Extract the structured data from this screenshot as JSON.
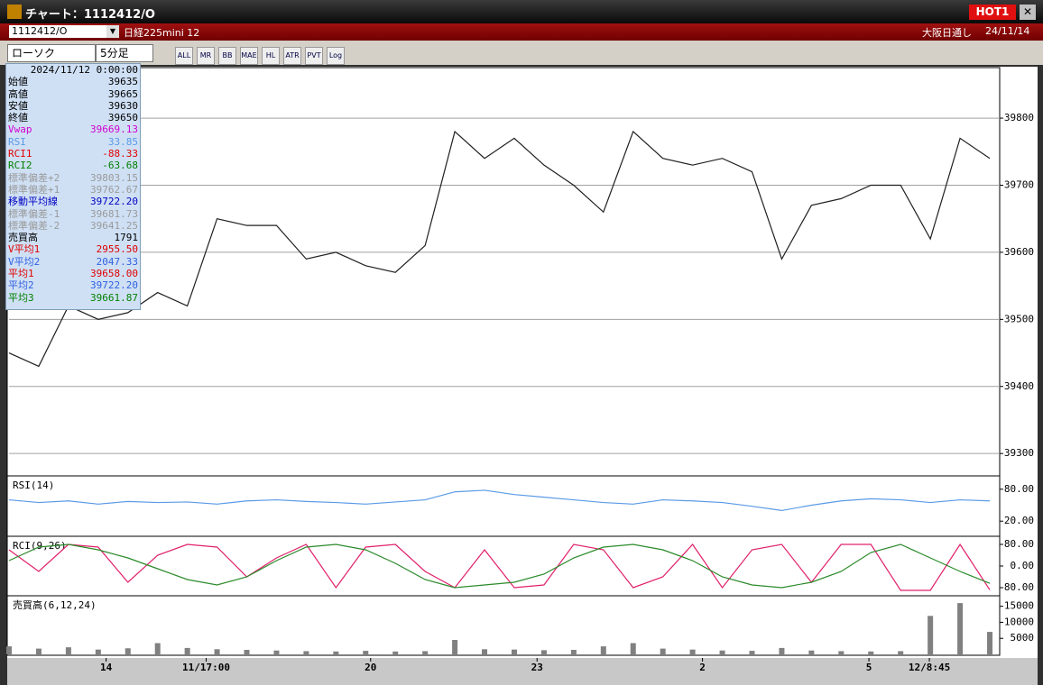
{
  "window": {
    "title": "チャート：1112412/O",
    "hot": "HOT1"
  },
  "toolbar": {
    "symbol": "1112412/O",
    "name": "日経225mini 12",
    "exchange": "大阪日通し",
    "date": "24/11/14",
    "chart_type": "ローソク",
    "interval": "5分足",
    "buttons": [
      "ALL",
      "MR",
      "BB",
      "MAE",
      "HL",
      "ATR",
      "PVT",
      "Log"
    ]
  },
  "info": {
    "datetime": "2024/11/12 0:00:00",
    "rows": [
      {
        "label": "始値",
        "value": "39635",
        "color": "#000000"
      },
      {
        "label": "高値",
        "value": "39665",
        "color": "#000000"
      },
      {
        "label": "安値",
        "value": "39630",
        "color": "#000000"
      },
      {
        "label": "終値",
        "value": "39650",
        "color": "#000000"
      },
      {
        "label": "Vwap",
        "value": "39669.13",
        "color": "#d000d0"
      },
      {
        "label": "RSI",
        "value": "33.85",
        "color": "#5a9ae6"
      },
      {
        "label": "RCI1",
        "value": "-88.33",
        "color": "#e00000"
      },
      {
        "label": "RCI2",
        "value": "-63.68",
        "color": "#008000"
      },
      {
        "label": "標準偏差+2",
        "value": "39803.15",
        "color": "#9a9a9a"
      },
      {
        "label": "標準偏差+1",
        "value": "39762.67",
        "color": "#9a9a9a"
      },
      {
        "label": "移動平均線",
        "value": "39722.20",
        "color": "#0000c0"
      },
      {
        "label": "標準偏差-1",
        "value": "39681.73",
        "color": "#9a9a9a"
      },
      {
        "label": "標準偏差-2",
        "value": "39641.25",
        "color": "#9a9a9a"
      },
      {
        "label": "売買高",
        "value": "1791",
        "color": "#000000"
      },
      {
        "label": "V平均1",
        "value": "2955.50",
        "color": "#e00000"
      },
      {
        "label": "V平均2",
        "value": "2047.33",
        "color": "#3060e0"
      },
      {
        "label": "平均1",
        "value": "39658.00",
        "color": "#e00000"
      },
      {
        "label": "平均2",
        "value": "39722.20",
        "color": "#3060e0"
      },
      {
        "label": "平均3",
        "value": "39661.87",
        "color": "#008000"
      }
    ]
  },
  "chart_data": [
    {
      "type": "line",
      "x": [
        0,
        3,
        6,
        9,
        12,
        15,
        18,
        21,
        24,
        27,
        30,
        33,
        36,
        39,
        42,
        45,
        48,
        51,
        54,
        57,
        60,
        63,
        66,
        69,
        72,
        75,
        78,
        81,
        84,
        87,
        90,
        93,
        96,
        99
      ],
      "xlim": [
        0,
        100
      ],
      "xticks": [
        {
          "value": 9.8,
          "label": "14"
        },
        {
          "value": 19.9,
          "label": "11/17:00"
        },
        {
          "value": 36.5,
          "label": "20"
        },
        {
          "value": 53.3,
          "label": "23"
        },
        {
          "value": 70,
          "label": "2"
        },
        {
          "value": 86.8,
          "label": "5"
        },
        {
          "value": 92.9,
          "label": "12/8:45"
        }
      ],
      "ylim": [
        39268,
        39874
      ],
      "yticks": [
        39300,
        39400,
        39500,
        39600,
        39700,
        39800
      ],
      "grid": true,
      "series": [
        {
          "name": "終値",
          "color": "#202020",
          "values": [
            39450,
            39430,
            39520,
            39500,
            39510,
            39540,
            39520,
            39650,
            39640,
            39640,
            39590,
            39600,
            39580,
            39570,
            39610,
            39780,
            39740,
            39770,
            39730,
            39700,
            39660,
            39780,
            39740,
            39730,
            39740,
            39720,
            39590,
            39670,
            39680,
            39700,
            39700,
            39620,
            39770,
            39740
          ]
        }
      ]
    },
    {
      "type": "line",
      "title": "RSI(14)",
      "x": [
        0,
        3,
        6,
        9,
        12,
        15,
        18,
        21,
        24,
        27,
        30,
        33,
        36,
        39,
        42,
        45,
        48,
        51,
        54,
        57,
        60,
        63,
        66,
        69,
        72,
        75,
        78,
        81,
        84,
        87,
        90,
        93,
        96,
        99
      ],
      "xlim": [
        0,
        100
      ],
      "ylim": [
        -6.7,
        103.3
      ],
      "yticks": [
        {
          "value": 80,
          "label": "80.00"
        },
        {
          "value": 20,
          "label": "20.00"
        }
      ],
      "grid": false,
      "series": [
        {
          "name": "RSI",
          "color": "#5a9ae6",
          "values": [
            60,
            55,
            58,
            52,
            57,
            55,
            56,
            52,
            58,
            60,
            57,
            55,
            52,
            56,
            60,
            75,
            78,
            70,
            65,
            60,
            55,
            52,
            60,
            58,
            55,
            48,
            40,
            50,
            58,
            62,
            60,
            55,
            60,
            58
          ]
        }
      ]
    },
    {
      "type": "line",
      "title": "RCI(9,26)",
      "x": [
        0,
        3,
        6,
        9,
        12,
        15,
        18,
        21,
        24,
        27,
        30,
        33,
        36,
        39,
        42,
        45,
        48,
        51,
        54,
        57,
        60,
        63,
        66,
        69,
        72,
        75,
        78,
        81,
        84,
        87,
        90,
        93,
        96,
        99
      ],
      "xlim": [
        0,
        100
      ],
      "ylim": [
        -106.7,
        106.7
      ],
      "yticks": [
        {
          "value": 80,
          "label": "80.00"
        },
        {
          "value": 0,
          "label": "0.00"
        },
        {
          "value": -80,
          "label": "-80.00"
        }
      ],
      "grid": false,
      "series": [
        {
          "name": "RCI1",
          "color": "#e0206a",
          "values": [
            60,
            -20,
            80,
            70,
            -60,
            40,
            80,
            70,
            -40,
            30,
            80,
            -80,
            70,
            80,
            -20,
            -80,
            60,
            -80,
            -70,
            80,
            60,
            -80,
            -40,
            80,
            -80,
            60,
            80,
            -60,
            80,
            80,
            -90,
            -90,
            80,
            -88
          ]
        },
        {
          "name": "RCI2",
          "color": "#2a8a2a",
          "values": [
            20,
            70,
            80,
            60,
            30,
            -10,
            -50,
            -70,
            -40,
            20,
            70,
            80,
            60,
            10,
            -50,
            -80,
            -70,
            -60,
            -30,
            30,
            70,
            80,
            60,
            20,
            -40,
            -70,
            -80,
            -60,
            -20,
            50,
            80,
            30,
            -20,
            -64
          ]
        }
      ]
    },
    {
      "type": "bar",
      "title": "売買高(6,12,24)",
      "x": [
        0,
        3,
        6,
        9,
        12,
        15,
        18,
        21,
        24,
        27,
        30,
        33,
        36,
        39,
        42,
        45,
        48,
        51,
        54,
        57,
        60,
        63,
        66,
        69,
        72,
        75,
        78,
        81,
        84,
        87,
        90,
        93,
        96,
        99
      ],
      "xlim": [
        0,
        100
      ],
      "ylim": [
        0,
        18000
      ],
      "yticks": [
        15000,
        10000,
        5000
      ],
      "grid": false,
      "series": [
        {
          "name": "売買高",
          "color": "#808080",
          "values": [
            2500,
            1800,
            2200,
            1500,
            1900,
            3500,
            2000,
            1600,
            1400,
            1200,
            1000,
            900,
            1100,
            900,
            1000,
            4500,
            1600,
            1500,
            1300,
            1400,
            2500,
            3500,
            1800,
            1500,
            1200,
            1100,
            2000,
            1200,
            1000,
            900,
            1000,
            12000,
            16000,
            7000
          ]
        }
      ]
    }
  ]
}
